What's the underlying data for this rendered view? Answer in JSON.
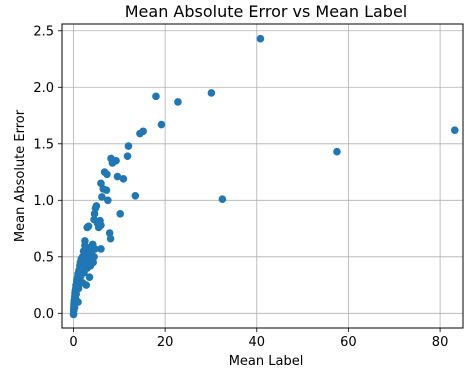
{
  "chart_data": {
    "type": "scatter",
    "title": "Mean Absolute Error vs Mean Label",
    "xlabel": "Mean Label",
    "ylabel": "Mean Absolute Error",
    "xlim": [
      -2.5,
      85
    ],
    "ylim": [
      -0.13,
      2.56
    ],
    "xticks": [
      0,
      20,
      40,
      60,
      80
    ],
    "yticks": [
      0.0,
      0.5,
      1.0,
      1.5,
      2.0,
      2.5
    ],
    "xtick_labels": [
      "0",
      "20",
      "40",
      "60",
      "80"
    ],
    "ytick_labels": [
      "0.0",
      "0.5",
      "1.0",
      "1.5",
      "2.0",
      "2.5"
    ],
    "grid": true,
    "marker_color": "#1f77b4",
    "points": [
      [
        0.02,
        -0.01
      ],
      [
        0.05,
        0.02
      ],
      [
        0.08,
        0.04
      ],
      [
        0.1,
        0.06
      ],
      [
        0.12,
        0.08
      ],
      [
        0.15,
        0.1
      ],
      [
        0.2,
        0.12
      ],
      [
        0.25,
        0.05
      ],
      [
        0.3,
        0.15
      ],
      [
        0.35,
        0.18
      ],
      [
        0.4,
        0.2
      ],
      [
        0.45,
        0.13
      ],
      [
        0.5,
        0.22
      ],
      [
        0.55,
        0.25
      ],
      [
        0.6,
        0.17
      ],
      [
        0.7,
        0.28
      ],
      [
        0.8,
        0.3
      ],
      [
        0.9,
        0.32
      ],
      [
        1.0,
        0.1
      ],
      [
        1.0,
        0.35
      ],
      [
        1.1,
        0.22
      ],
      [
        1.2,
        0.38
      ],
      [
        1.3,
        0.28
      ],
      [
        1.4,
        0.42
      ],
      [
        1.5,
        0.45
      ],
      [
        1.6,
        0.33
      ],
      [
        1.7,
        0.48
      ],
      [
        1.8,
        0.4
      ],
      [
        2.0,
        0.5
      ],
      [
        2.0,
        0.27
      ],
      [
        2.2,
        0.55
      ],
      [
        2.3,
        0.36
      ],
      [
        2.5,
        0.6
      ],
      [
        2.5,
        0.44
      ],
      [
        2.7,
        0.5
      ],
      [
        2.8,
        0.25
      ],
      [
        3.0,
        0.52
      ],
      [
        3.0,
        0.4
      ],
      [
        3.2,
        0.46
      ],
      [
        3.3,
        0.58
      ],
      [
        3.5,
        0.32
      ],
      [
        3.5,
        0.5
      ],
      [
        3.7,
        0.42
      ],
      [
        4.0,
        0.55
      ],
      [
        4.0,
        0.48
      ],
      [
        4.2,
        0.61
      ],
      [
        4.3,
        0.45
      ],
      [
        4.5,
        0.5
      ],
      [
        4.7,
        0.57
      ],
      [
        2.5,
        0.64
      ],
      [
        3.0,
        0.76
      ],
      [
        3.3,
        0.77
      ],
      [
        4.5,
        0.83
      ],
      [
        4.6,
        0.88
      ],
      [
        4.8,
        0.93
      ],
      [
        5.0,
        0.95
      ],
      [
        5.2,
        0.8
      ],
      [
        5.5,
        0.76
      ],
      [
        5.8,
        0.82
      ],
      [
        6.0,
        0.78
      ],
      [
        6.0,
        0.57
      ],
      [
        6.2,
        1.03
      ],
      [
        6.0,
        1.15
      ],
      [
        6.5,
        1.1
      ],
      [
        6.8,
        1.25
      ],
      [
        7.3,
        1.23
      ],
      [
        7.5,
        1.0
      ],
      [
        7.2,
        1.09
      ],
      [
        7.9,
        0.71
      ],
      [
        8.1,
        0.66
      ],
      [
        8.5,
        1.33
      ],
      [
        8.2,
        1.37
      ],
      [
        9.3,
        1.35
      ],
      [
        9.6,
        1.21
      ],
      [
        10.2,
        0.88
      ],
      [
        10.9,
        1.19
      ],
      [
        11.8,
        1.39
      ],
      [
        12.0,
        1.48
      ],
      [
        13.5,
        1.04
      ],
      [
        14.5,
        1.59
      ],
      [
        15.2,
        1.61
      ],
      [
        18.0,
        1.92
      ],
      [
        19.2,
        1.67
      ],
      [
        22.8,
        1.87
      ],
      [
        30.1,
        1.95
      ],
      [
        32.5,
        1.01
      ],
      [
        40.8,
        2.43
      ],
      [
        57.5,
        1.43
      ],
      [
        83.2,
        1.62
      ]
    ]
  }
}
